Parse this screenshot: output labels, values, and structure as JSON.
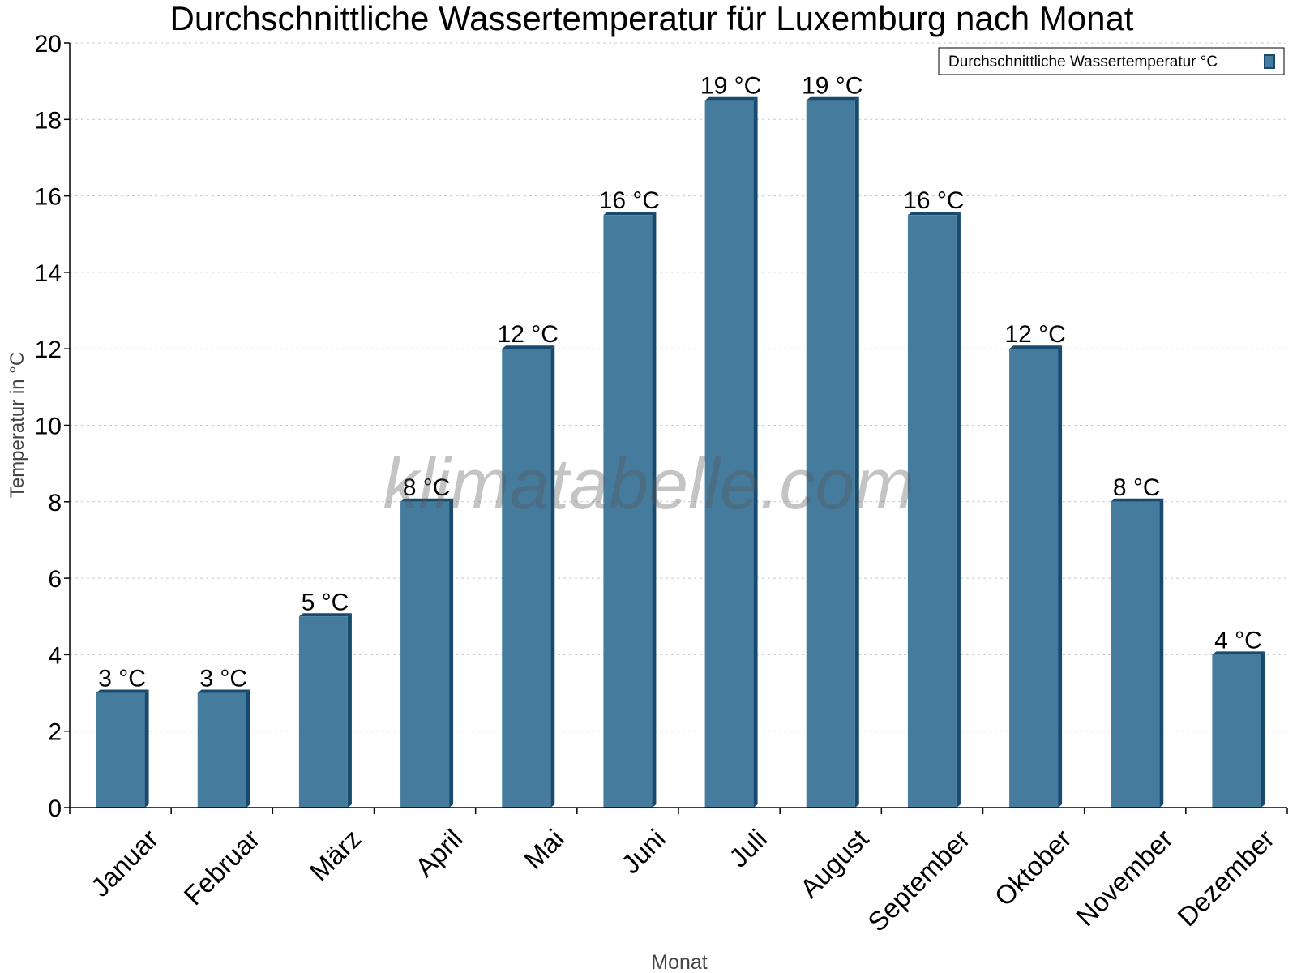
{
  "chart_data": {
    "type": "bar",
    "title": "Durchschnittliche Wassertemperatur für Luxemburg nach Monat",
    "xlabel": "Monat",
    "ylabel": "Temperatur in °C",
    "ylim": [
      0,
      20
    ],
    "yticks": [
      0,
      2,
      4,
      6,
      8,
      10,
      12,
      14,
      16,
      18,
      20
    ],
    "grid": true,
    "legend_position": "top-right",
    "categories": [
      "Januar",
      "Februar",
      "März",
      "April",
      "Mai",
      "Juni",
      "Juli",
      "August",
      "September",
      "Oktober",
      "November",
      "Dezember"
    ],
    "series": [
      {
        "name": "Durchschnittliche Wassertemperatur °C",
        "values": [
          3,
          3,
          5,
          8,
          12,
          15.5,
          18.5,
          18.5,
          15.5,
          12,
          8,
          4
        ],
        "data_labels": [
          "3 °C",
          "3 °C",
          "5 °C",
          "8 °C",
          "12 °C",
          "16 °C",
          "19 °C",
          "19 °C",
          "16 °C",
          "12 °C",
          "8 °C",
          "4 °C"
        ],
        "color": "#457b9d",
        "side_color": "#174a6e"
      }
    ],
    "watermark": "klimatabelle.com"
  }
}
